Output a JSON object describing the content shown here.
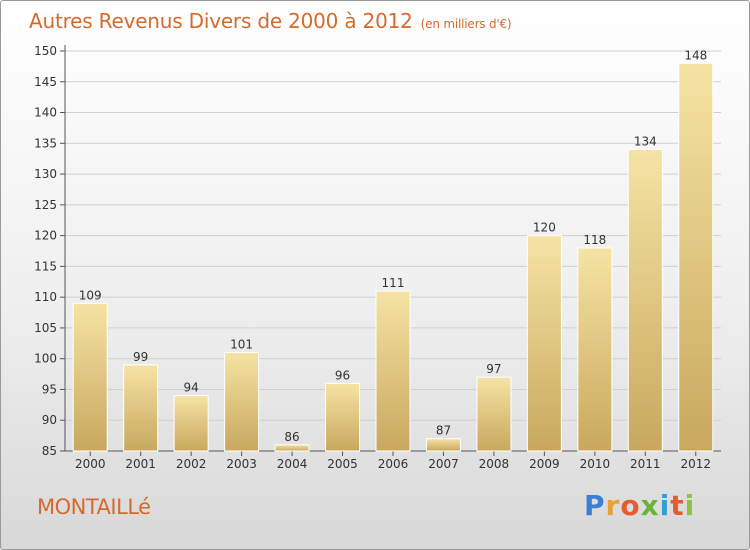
{
  "header": {
    "title": "Autres Revenus Divers de 2000 à 2012",
    "unit": "(en milliers d'€)"
  },
  "footer": {
    "place": "MONTAILLé",
    "logo": {
      "letters": [
        "P",
        "r",
        "o",
        "x",
        "i",
        "t",
        "i"
      ],
      "colors": [
        "#3a7fd5",
        "#e8a23a",
        "#e35d2e",
        "#6ab23a",
        "#2f9fd8",
        "#e35d2e",
        "#8bc43f"
      ]
    }
  },
  "colors": {
    "title": "#d56a2c",
    "bar_light": "#f6e3a4",
    "bar_dark": "#c8a85e",
    "grid": "#cfcfcf"
  },
  "chart_data": {
    "type": "bar",
    "categories": [
      "2000",
      "2001",
      "2002",
      "2003",
      "2004",
      "2005",
      "2006",
      "2007",
      "2008",
      "2009",
      "2010",
      "2011",
      "2012"
    ],
    "values": [
      109,
      99,
      94,
      101,
      86,
      96,
      111,
      87,
      97,
      120,
      118,
      134,
      148
    ],
    "ylim": [
      85,
      150
    ],
    "yticks": [
      85,
      90,
      95,
      100,
      105,
      110,
      115,
      120,
      125,
      130,
      135,
      140,
      145,
      150
    ],
    "grid": true,
    "data_labels": true
  }
}
